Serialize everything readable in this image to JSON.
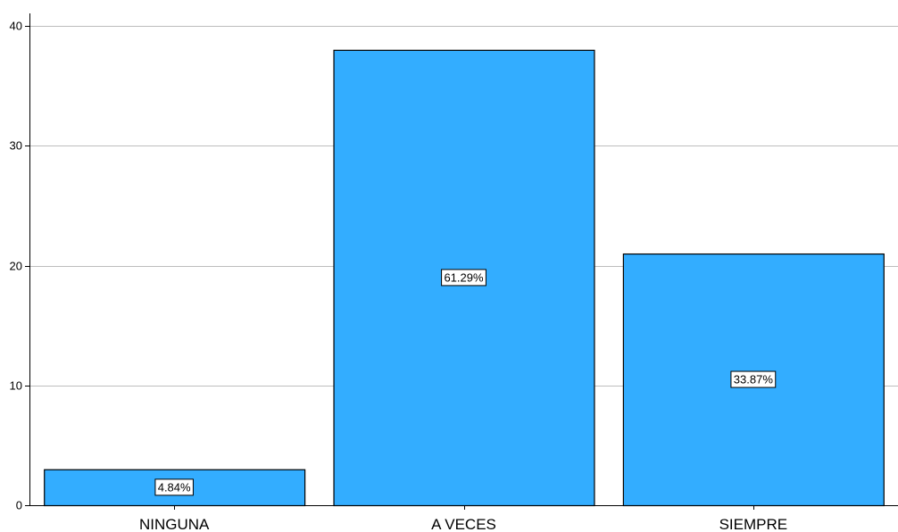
{
  "chart_data": {
    "type": "bar",
    "categories": [
      "NINGUNA",
      "A VECES",
      "SIEMPRE"
    ],
    "values": [
      3,
      38,
      21
    ],
    "data_labels": [
      "4.84%",
      "61.29%",
      "33.87%"
    ],
    "title": "",
    "xlabel": "",
    "ylabel": "",
    "ylim": [
      0,
      40
    ],
    "yticks": [
      0,
      10,
      20,
      30,
      40
    ],
    "grid": true,
    "legend": "none",
    "colors": {
      "bar": "#33adff",
      "bar_edge": "#000000",
      "grid": "#bdbdbd",
      "axis": "#000000"
    }
  }
}
